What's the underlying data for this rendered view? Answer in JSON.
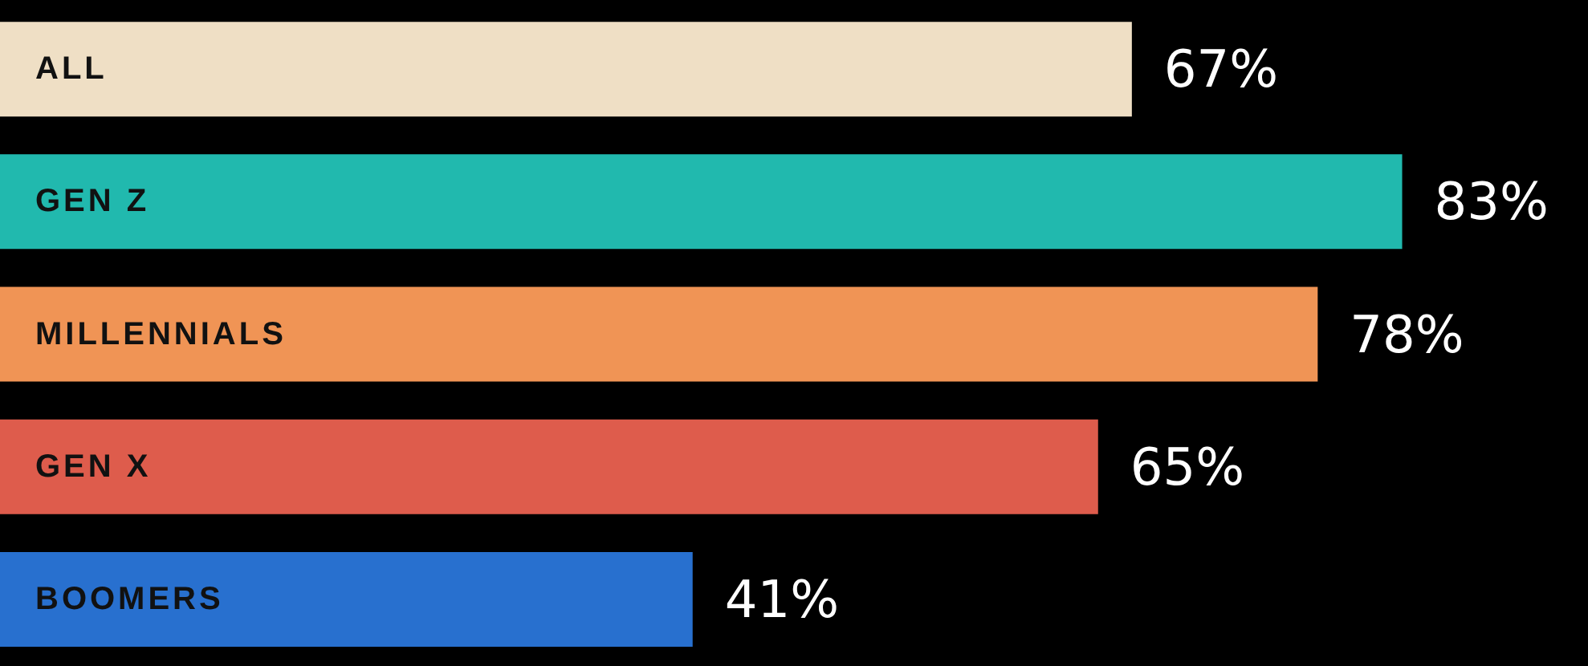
{
  "chart_data": {
    "type": "bar",
    "orientation": "horizontal",
    "categories": [
      "ALL",
      "GEN Z",
      "MILLENNIALS",
      "GEN X",
      "BOOMERS"
    ],
    "values": [
      67,
      83,
      78,
      65,
      41
    ],
    "colors": [
      "#efdfc5",
      "#21b9ae",
      "#f09455",
      "#de5c4c",
      "#2870cf"
    ],
    "value_labels": [
      "67%",
      "83%",
      "78%",
      "65%",
      "41%"
    ],
    "xlim": [
      0,
      94
    ],
    "tick_labels": false
  }
}
